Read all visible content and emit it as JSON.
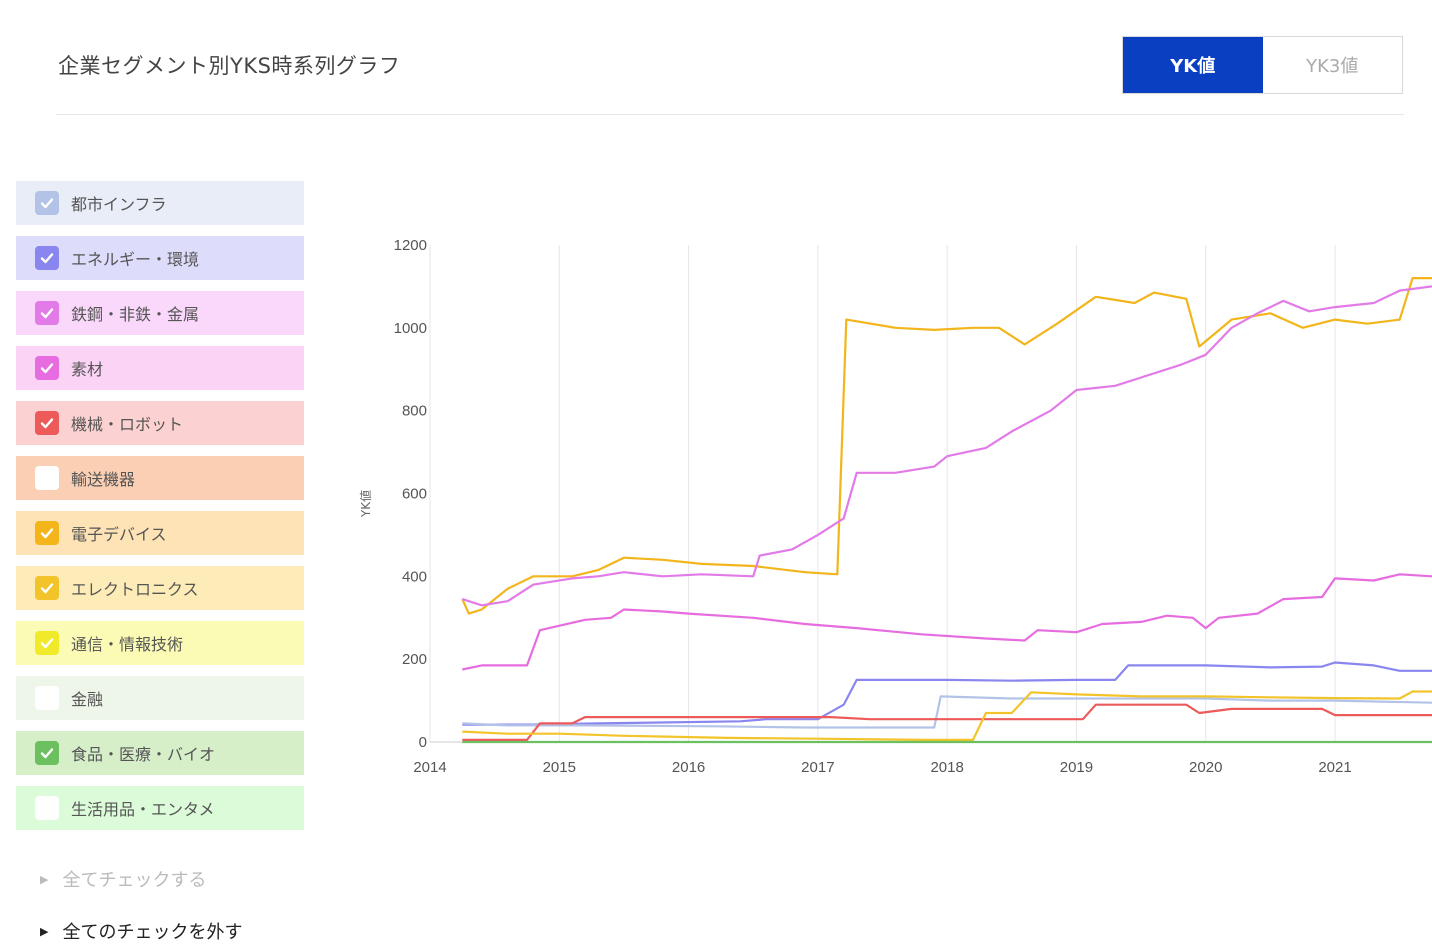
{
  "header": {
    "title": "企業セグメント別YKS時系列グラフ",
    "tabs": [
      {
        "label": "YK値",
        "active": true
      },
      {
        "label": "YK3値",
        "active": false
      }
    ]
  },
  "legend": {
    "items": [
      {
        "label": "都市インフラ",
        "bg": "#e8edf7",
        "check": "#b3c3e8",
        "checked": true
      },
      {
        "label": "エネルギー・環境",
        "bg": "#dedcfb",
        "check": "#8a86f0",
        "checked": true
      },
      {
        "label": "鉄鋼・非鉄・金属",
        "bg": "#f9d8fb",
        "check": "#e27ae8",
        "checked": true
      },
      {
        "label": "素材",
        "bg": "#fbd3f5",
        "check": "#e66ce0",
        "checked": true
      },
      {
        "label": "機械・ロボット",
        "bg": "#fbd1d1",
        "check": "#ec5a5a",
        "checked": true
      },
      {
        "label": "輸送機器",
        "bg": "#fbcfb3",
        "check": "#ffffff",
        "checked": false
      },
      {
        "label": "電子デバイス",
        "bg": "#fde3b5",
        "check": "#f3b51a",
        "checked": true
      },
      {
        "label": "エレクトロニクス",
        "bg": "#fdecb8",
        "check": "#f3c42a",
        "checked": true
      },
      {
        "label": "通信・情報技術",
        "bg": "#fcfbb6",
        "check": "#f1ea2a",
        "checked": true
      },
      {
        "label": "金融",
        "bg": "#eef5e9",
        "check": "#ffffff",
        "checked": false
      },
      {
        "label": "食品・医療・バイオ",
        "bg": "#d7efc9",
        "check": "#6cc060",
        "checked": true
      },
      {
        "label": "生活用品・エンタメ",
        "bg": "#dcfbd8",
        "check": "#ffffff",
        "checked": false
      }
    ]
  },
  "links": {
    "check_all": "全てチェックする",
    "uncheck_all": "全てのチェックを外す"
  },
  "chart_data": {
    "type": "line",
    "ylabel": "YK値",
    "xlim": [
      2014.0,
      2021.75
    ],
    "ylim": [
      0,
      1200
    ],
    "yticks": [
      0,
      200,
      400,
      600,
      800,
      1000,
      1200
    ],
    "xticks": [
      2014,
      2015,
      2016,
      2017,
      2018,
      2019,
      2020,
      2021
    ],
    "grid": "vertical",
    "series": [
      {
        "color": "#f2b51b",
        "points": [
          [
            2014.25,
            345
          ],
          [
            2014.3,
            310
          ],
          [
            2014.4,
            320
          ],
          [
            2014.6,
            370
          ],
          [
            2014.8,
            400
          ],
          [
            2015.1,
            400
          ],
          [
            2015.3,
            415
          ],
          [
            2015.5,
            445
          ],
          [
            2015.8,
            440
          ],
          [
            2016.1,
            430
          ],
          [
            2016.5,
            425
          ],
          [
            2016.9,
            410
          ],
          [
            2017.15,
            405
          ],
          [
            2017.22,
            1020
          ],
          [
            2017.6,
            1000
          ],
          [
            2017.9,
            995
          ],
          [
            2018.2,
            1000
          ],
          [
            2018.4,
            1000
          ],
          [
            2018.6,
            960
          ],
          [
            2018.85,
            1010
          ],
          [
            2019.15,
            1075
          ],
          [
            2019.45,
            1060
          ],
          [
            2019.6,
            1085
          ],
          [
            2019.85,
            1070
          ],
          [
            2019.95,
            955
          ],
          [
            2020.2,
            1020
          ],
          [
            2020.5,
            1035
          ],
          [
            2020.75,
            1000
          ],
          [
            2021.0,
            1020
          ],
          [
            2021.25,
            1010
          ],
          [
            2021.5,
            1020
          ],
          [
            2021.6,
            1120
          ],
          [
            2021.75,
            1120
          ]
        ]
      },
      {
        "color": "#e27ae8",
        "points": [
          [
            2014.25,
            345
          ],
          [
            2014.4,
            330
          ],
          [
            2014.6,
            340
          ],
          [
            2014.8,
            380
          ],
          [
            2015.1,
            395
          ],
          [
            2015.3,
            400
          ],
          [
            2015.5,
            410
          ],
          [
            2015.8,
            400
          ],
          [
            2016.1,
            405
          ],
          [
            2016.5,
            400
          ],
          [
            2016.55,
            450
          ],
          [
            2016.8,
            465
          ],
          [
            2017.0,
            500
          ],
          [
            2017.2,
            540
          ],
          [
            2017.3,
            650
          ],
          [
            2017.6,
            650
          ],
          [
            2017.9,
            665
          ],
          [
            2018.0,
            690
          ],
          [
            2018.3,
            710
          ],
          [
            2018.5,
            750
          ],
          [
            2018.8,
            800
          ],
          [
            2019.0,
            850
          ],
          [
            2019.3,
            860
          ],
          [
            2019.5,
            880
          ],
          [
            2019.8,
            910
          ],
          [
            2020.0,
            935
          ],
          [
            2020.2,
            1000
          ],
          [
            2020.4,
            1035
          ],
          [
            2020.6,
            1065
          ],
          [
            2020.8,
            1040
          ],
          [
            2021.0,
            1050
          ],
          [
            2021.3,
            1060
          ],
          [
            2021.5,
            1090
          ],
          [
            2021.75,
            1100
          ]
        ]
      },
      {
        "color": "#e66ce0",
        "points": [
          [
            2014.25,
            175
          ],
          [
            2014.4,
            185
          ],
          [
            2014.75,
            185
          ],
          [
            2014.85,
            270
          ],
          [
            2015.2,
            295
          ],
          [
            2015.4,
            300
          ],
          [
            2015.5,
            320
          ],
          [
            2015.8,
            315
          ],
          [
            2016.0,
            310
          ],
          [
            2016.5,
            300
          ],
          [
            2016.9,
            285
          ],
          [
            2017.3,
            275
          ],
          [
            2017.8,
            260
          ],
          [
            2018.3,
            250
          ],
          [
            2018.6,
            245
          ],
          [
            2018.7,
            270
          ],
          [
            2019.0,
            265
          ],
          [
            2019.2,
            285
          ],
          [
            2019.5,
            290
          ],
          [
            2019.7,
            305
          ],
          [
            2019.9,
            300
          ],
          [
            2020.0,
            275
          ],
          [
            2020.1,
            300
          ],
          [
            2020.4,
            310
          ],
          [
            2020.6,
            345
          ],
          [
            2020.9,
            350
          ],
          [
            2021.0,
            395
          ],
          [
            2021.3,
            390
          ],
          [
            2021.5,
            405
          ],
          [
            2021.75,
            400
          ]
        ]
      },
      {
        "color": "#8a86f0",
        "points": [
          [
            2014.25,
            42
          ],
          [
            2014.8,
            42
          ],
          [
            2015.3,
            45
          ],
          [
            2016.4,
            50
          ],
          [
            2016.6,
            55
          ],
          [
            2017.0,
            55
          ],
          [
            2017.2,
            90
          ],
          [
            2017.3,
            150
          ],
          [
            2018.0,
            150
          ],
          [
            2018.5,
            148
          ],
          [
            2019.0,
            150
          ],
          [
            2019.3,
            150
          ],
          [
            2019.4,
            185
          ],
          [
            2020.0,
            185
          ],
          [
            2020.5,
            180
          ],
          [
            2020.9,
            182
          ],
          [
            2021.0,
            192
          ],
          [
            2021.3,
            185
          ],
          [
            2021.5,
            172
          ],
          [
            2021.75,
            172
          ]
        ]
      },
      {
        "color": "#b3c3e8",
        "points": [
          [
            2014.25,
            45
          ],
          [
            2014.6,
            40
          ],
          [
            2015.2,
            40
          ],
          [
            2016.2,
            38
          ],
          [
            2016.9,
            35
          ],
          [
            2017.6,
            35
          ],
          [
            2017.9,
            35
          ],
          [
            2017.95,
            110
          ],
          [
            2018.5,
            105
          ],
          [
            2019.0,
            105
          ],
          [
            2019.5,
            105
          ],
          [
            2020.0,
            105
          ],
          [
            2020.5,
            100
          ],
          [
            2021.0,
            100
          ],
          [
            2021.75,
            95
          ]
        ]
      },
      {
        "color": "#ec5a5a",
        "points": [
          [
            2014.25,
            5
          ],
          [
            2014.75,
            5
          ],
          [
            2014.85,
            45
          ],
          [
            2015.1,
            45
          ],
          [
            2015.2,
            60
          ],
          [
            2015.5,
            60
          ],
          [
            2016.0,
            60
          ],
          [
            2016.6,
            60
          ],
          [
            2017.1,
            60
          ],
          [
            2017.4,
            55
          ],
          [
            2017.9,
            55
          ],
          [
            2018.5,
            55
          ],
          [
            2019.05,
            55
          ],
          [
            2019.15,
            90
          ],
          [
            2019.5,
            90
          ],
          [
            2019.85,
            90
          ],
          [
            2019.95,
            70
          ],
          [
            2020.2,
            80
          ],
          [
            2020.5,
            80
          ],
          [
            2020.9,
            80
          ],
          [
            2021.0,
            65
          ],
          [
            2021.3,
            65
          ],
          [
            2021.75,
            65
          ]
        ]
      },
      {
        "color": "#f3c42a",
        "points": [
          [
            2014.25,
            25
          ],
          [
            2014.6,
            20
          ],
          [
            2015.0,
            20
          ],
          [
            2015.5,
            15
          ],
          [
            2016.3,
            10
          ],
          [
            2017.0,
            8
          ],
          [
            2017.8,
            5
          ],
          [
            2018.2,
            5
          ],
          [
            2018.3,
            70
          ],
          [
            2018.5,
            70
          ],
          [
            2018.65,
            120
          ],
          [
            2019.0,
            115
          ],
          [
            2019.5,
            110
          ],
          [
            2020.0,
            110
          ],
          [
            2020.5,
            108
          ],
          [
            2021.0,
            106
          ],
          [
            2021.5,
            105
          ],
          [
            2021.6,
            122
          ],
          [
            2021.75,
            122
          ]
        ]
      },
      {
        "color": "#6cc060",
        "points": [
          [
            2014.25,
            0
          ],
          [
            2021.75,
            0
          ]
        ]
      }
    ]
  }
}
